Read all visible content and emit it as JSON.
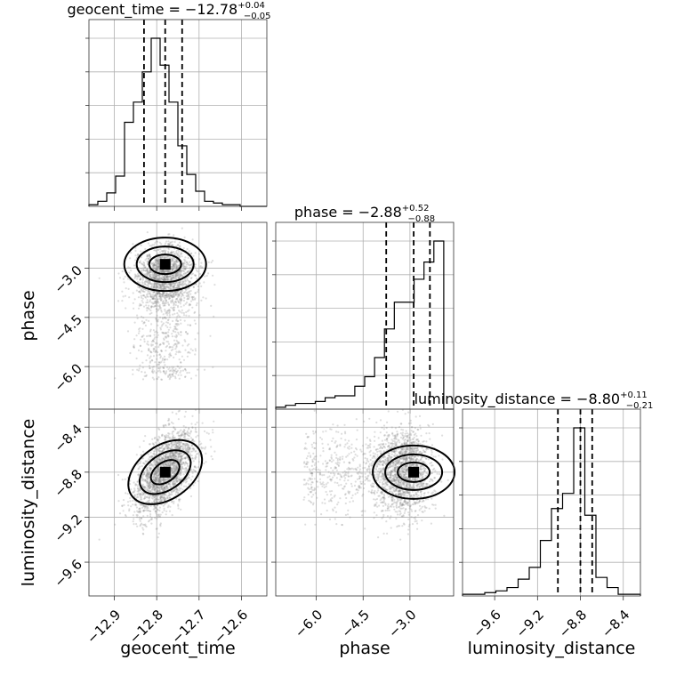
{
  "chart_data": {
    "type": "corner",
    "parameters": [
      {
        "name": "geocent_time",
        "axis_label": "geocent_time",
        "median": "−12.78",
        "upper": "+0.04",
        "lower": "−0.05",
        "title_prefix": "geocent_time = −12.78",
        "range": [
          -12.96,
          -12.54
        ],
        "ticks": [
          -12.9,
          -12.8,
          -12.7,
          -12.6
        ],
        "tick_labels": [
          "−12.9",
          "−12.8",
          "−12.7",
          "−12.6"
        ],
        "quantiles": [
          -12.83,
          -12.78,
          -12.74
        ],
        "hist": [
          1,
          3,
          8,
          18,
          50,
          62,
          80,
          100,
          84,
          62,
          36,
          19,
          9,
          3,
          2,
          1,
          1,
          0,
          0,
          0
        ]
      },
      {
        "name": "phase",
        "axis_label": "phase",
        "median": "−2.88",
        "upper": "+0.52",
        "lower": "−0.88",
        "title_prefix": "phase = −2.88",
        "range": [
          -7.3,
          -1.6
        ],
        "ticks": [
          -6.0,
          -4.5,
          -3.0
        ],
        "tick_labels": [
          "−6.0",
          "−4.5",
          "−3.0"
        ],
        "quantiles": [
          -3.76,
          -2.88,
          -2.36
        ],
        "hist": [
          1,
          2,
          3,
          3,
          4,
          6,
          7,
          7,
          12,
          17,
          27,
          42,
          56,
          56,
          68,
          77,
          88,
          0
        ]
      },
      {
        "name": "luminosity_distance",
        "axis_label": "luminosity_distance",
        "median": "−8.80",
        "upper": "+0.11",
        "lower": "−0.21",
        "title_prefix": "luminosity_distance = −8.80",
        "range": [
          -9.9,
          -8.24
        ],
        "ticks": [
          -9.6,
          -9.2,
          -8.8,
          -8.4
        ],
        "tick_labels": [
          "−9.6",
          "−9.2",
          "−8.8",
          "−8.4"
        ],
        "quantiles": [
          -9.01,
          -8.8,
          -8.69
        ],
        "hist": [
          1,
          1,
          2,
          3,
          5,
          10,
          17,
          33,
          52,
          61,
          100,
          48,
          11,
          5,
          1,
          1
        ]
      }
    ],
    "grid": true
  }
}
